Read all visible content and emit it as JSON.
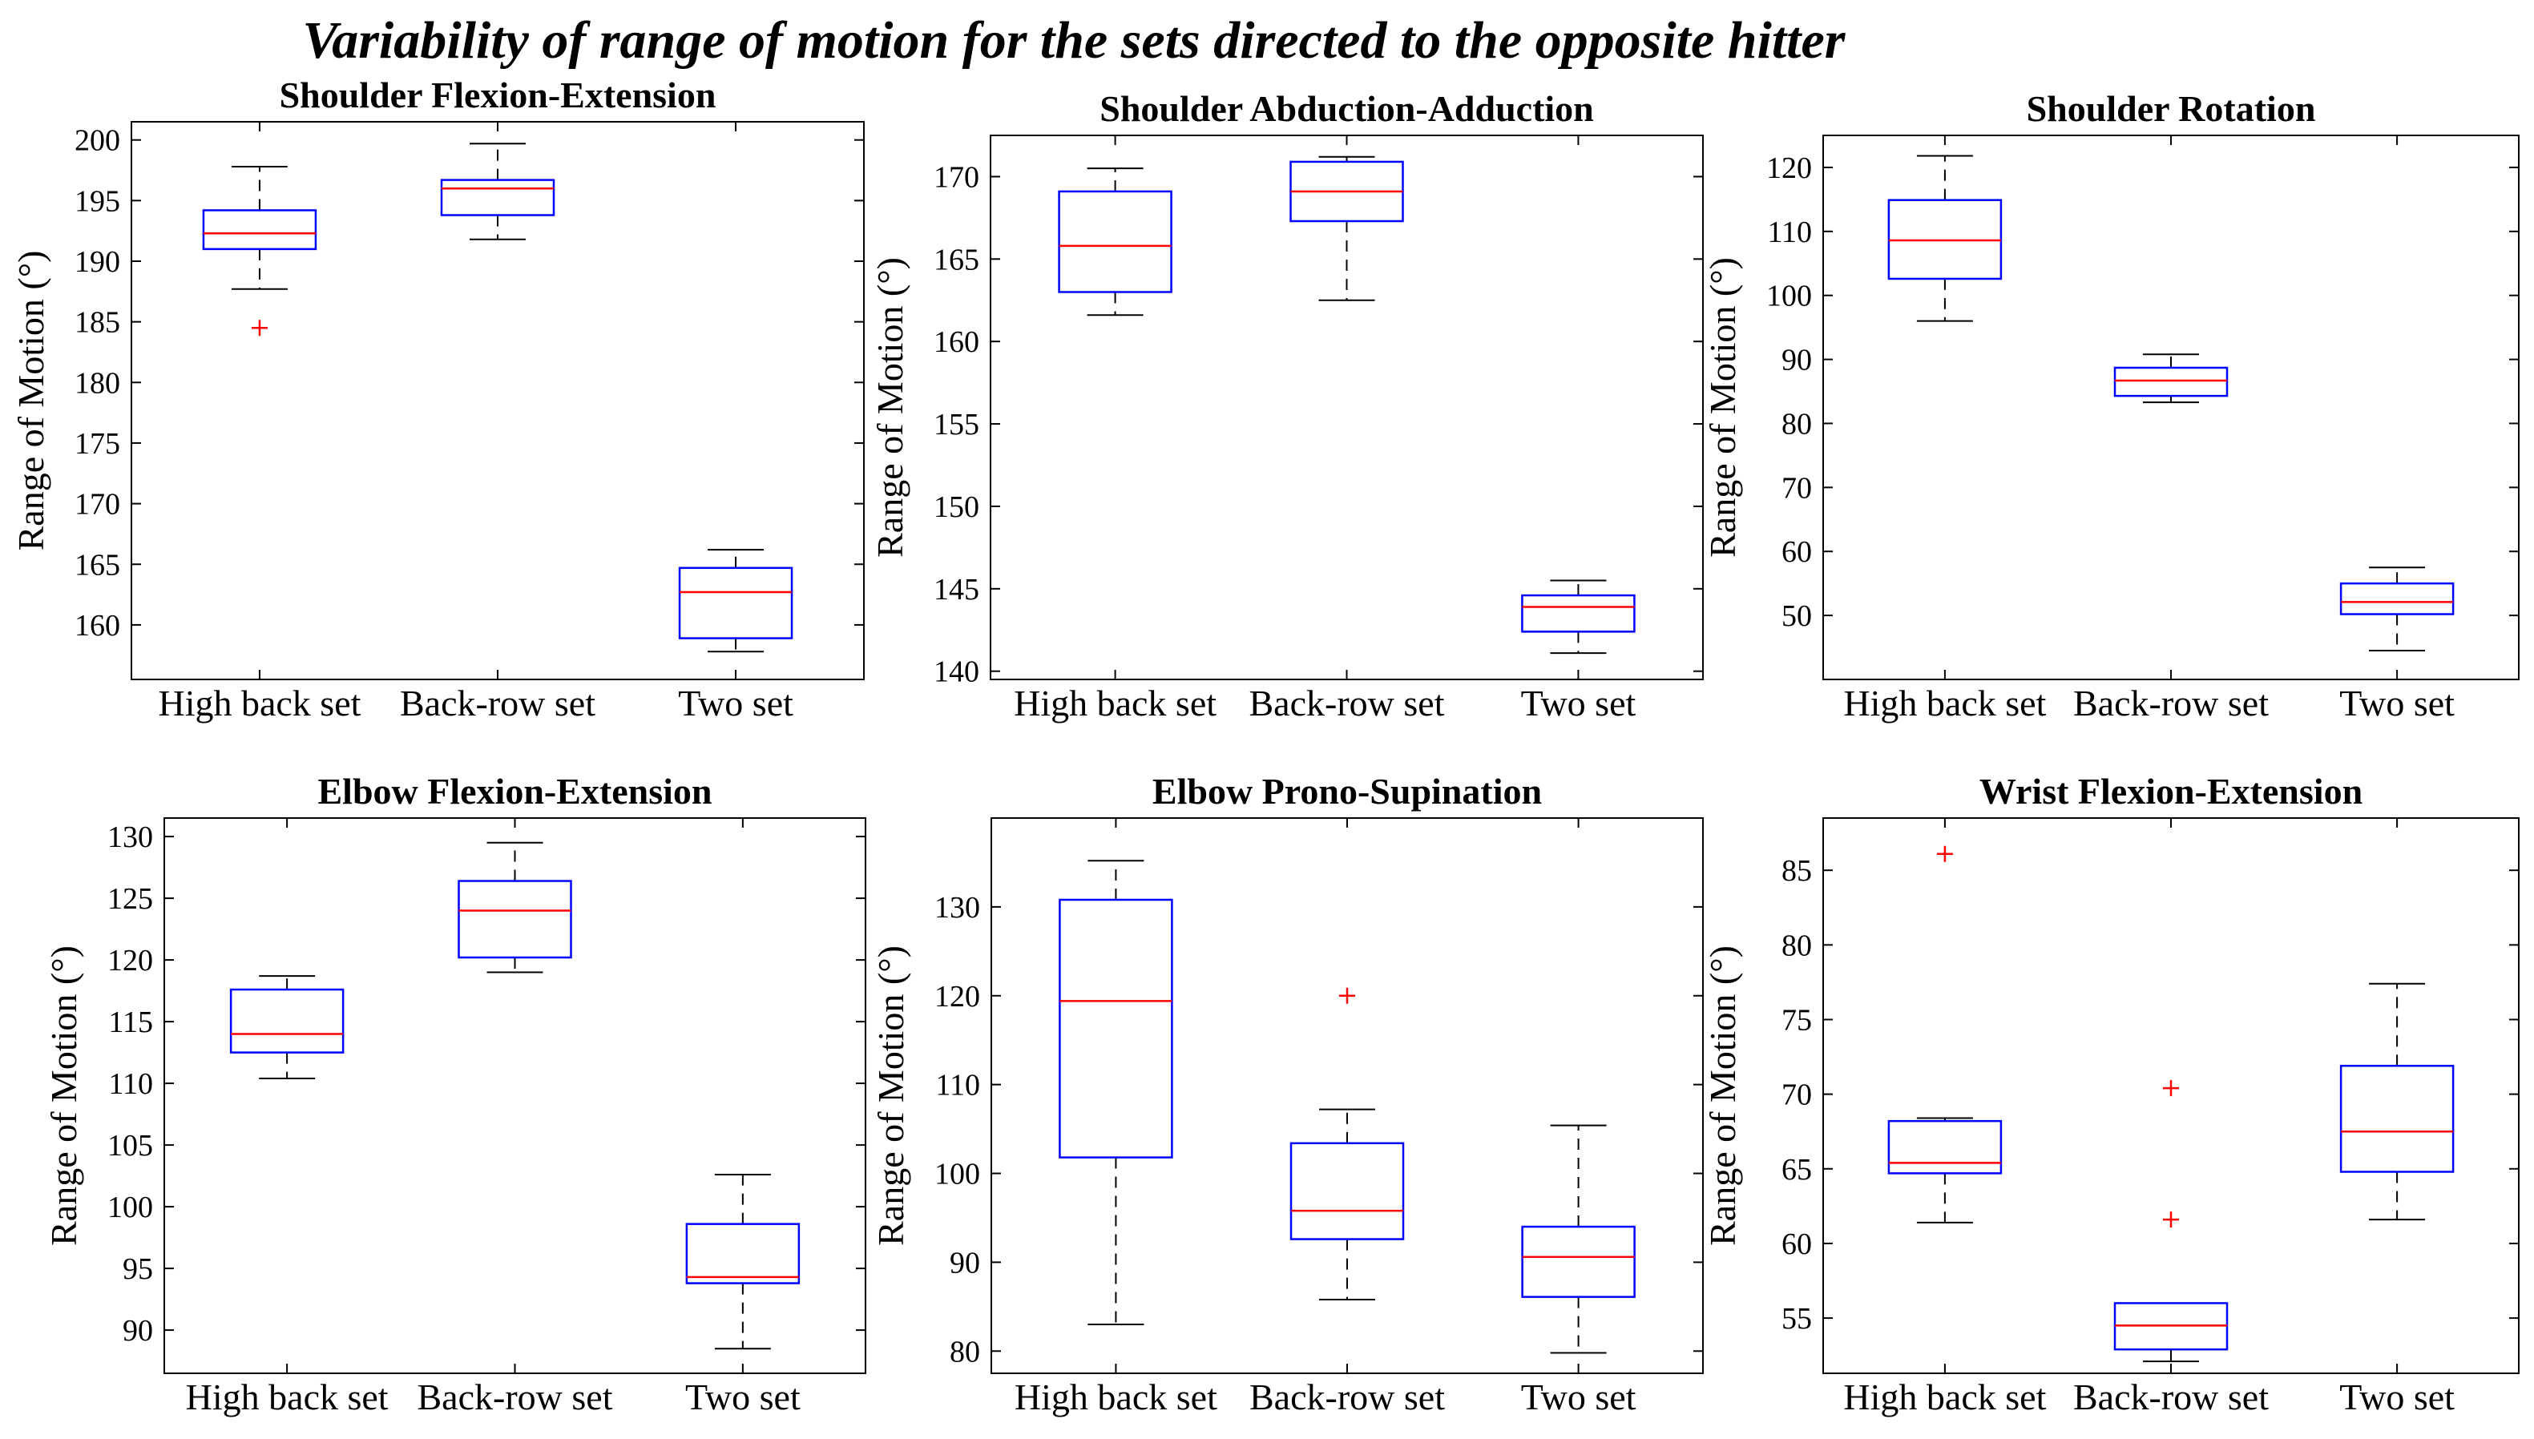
{
  "figure_title": "Variability of range of motion for the sets directed to the opposite hitter",
  "chart_data": [
    {
      "type": "box",
      "title": "Shoulder Flexion-Extension",
      "ylabel": "Range of Motion (°)",
      "xlabel": "",
      "categories": [
        "High back set",
        "Back-row set",
        "Two set"
      ],
      "ylim": [
        155.5,
        201.5
      ],
      "yticks": [
        160,
        165,
        170,
        175,
        180,
        185,
        190,
        195,
        200
      ],
      "boxes": [
        {
          "whisker_low": 187.7,
          "q1": 191.0,
          "median": 192.3,
          "q3": 194.2,
          "whisker_high": 197.8,
          "outliers": [
            184.5
          ]
        },
        {
          "whisker_low": 191.8,
          "q1": 193.8,
          "median": 196.0,
          "q3": 196.7,
          "whisker_high": 199.7,
          "outliers": []
        },
        {
          "whisker_low": 157.8,
          "q1": 158.9,
          "median": 162.7,
          "q3": 164.7,
          "whisker_high": 166.2,
          "outliers": []
        }
      ]
    },
    {
      "type": "box",
      "title": "Shoulder Abduction-Adduction",
      "ylabel": "Range of Motion (°)",
      "xlabel": "",
      "categories": [
        "High back set",
        "Back-row set",
        "Two set"
      ],
      "ylim": [
        139.5,
        172.5
      ],
      "yticks": [
        140,
        145,
        150,
        155,
        160,
        165,
        170
      ],
      "boxes": [
        {
          "whisker_low": 161.6,
          "q1": 163.0,
          "median": 165.8,
          "q3": 169.1,
          "whisker_high": 170.5,
          "outliers": []
        },
        {
          "whisker_low": 162.5,
          "q1": 167.3,
          "median": 169.1,
          "q3": 170.9,
          "whisker_high": 171.2,
          "outliers": []
        },
        {
          "whisker_low": 141.1,
          "q1": 142.4,
          "median": 143.9,
          "q3": 144.6,
          "whisker_high": 145.5,
          "outliers": []
        }
      ]
    },
    {
      "type": "box",
      "title": "Shoulder Rotation",
      "ylabel": "Range of Motion (°)",
      "xlabel": "",
      "categories": [
        "High back set",
        "Back-row set",
        "Two set"
      ],
      "ylim": [
        40,
        125
      ],
      "yticks": [
        50,
        60,
        70,
        80,
        90,
        100,
        110,
        120
      ],
      "boxes": [
        {
          "whisker_low": 96.0,
          "q1": 102.6,
          "median": 108.6,
          "q3": 114.9,
          "whisker_high": 121.8,
          "outliers": []
        },
        {
          "whisker_low": 83.3,
          "q1": 84.3,
          "median": 86.7,
          "q3": 88.7,
          "whisker_high": 90.8,
          "outliers": []
        },
        {
          "whisker_low": 44.5,
          "q1": 50.2,
          "median": 52.1,
          "q3": 55.0,
          "whisker_high": 57.5,
          "outliers": []
        }
      ]
    },
    {
      "type": "box",
      "title": "Elbow Flexion-Extension",
      "ylabel": "Range of Motion (°)",
      "xlabel": "",
      "categories": [
        "High back set",
        "Back-row set",
        "Two set"
      ],
      "ylim": [
        86.5,
        131.5
      ],
      "yticks": [
        90,
        95,
        100,
        105,
        110,
        115,
        120,
        125,
        130
      ],
      "boxes": [
        {
          "whisker_low": 110.4,
          "q1": 112.5,
          "median": 114.0,
          "q3": 117.6,
          "whisker_high": 118.7,
          "outliers": []
        },
        {
          "whisker_low": 119.0,
          "q1": 120.2,
          "median": 124.0,
          "q3": 126.4,
          "whisker_high": 129.5,
          "outliers": []
        },
        {
          "whisker_low": 88.5,
          "q1": 93.8,
          "median": 94.3,
          "q3": 98.6,
          "whisker_high": 102.6,
          "outliers": []
        }
      ]
    },
    {
      "type": "box",
      "title": "Elbow Prono-Supination",
      "ylabel": "Range of Motion (°)",
      "xlabel": "",
      "categories": [
        "High back set",
        "Back-row set",
        "Two set"
      ],
      "ylim": [
        77.5,
        140
      ],
      "yticks": [
        80,
        90,
        100,
        110,
        120,
        130
      ],
      "boxes": [
        {
          "whisker_low": 83.0,
          "q1": 101.8,
          "median": 119.4,
          "q3": 130.8,
          "whisker_high": 135.2,
          "outliers": []
        },
        {
          "whisker_low": 85.8,
          "q1": 92.6,
          "median": 95.8,
          "q3": 103.4,
          "whisker_high": 107.2,
          "outliers": [
            120.0
          ]
        },
        {
          "whisker_low": 79.8,
          "q1": 86.1,
          "median": 90.6,
          "q3": 94.0,
          "whisker_high": 105.4,
          "outliers": []
        }
      ]
    },
    {
      "type": "box",
      "title": "Wrist Flexion-Extension",
      "ylabel": "Range of Motion (°)",
      "xlabel": "",
      "categories": [
        "High back set",
        "Back-row set",
        "Two set"
      ],
      "ylim": [
        51.3,
        88.5
      ],
      "yticks": [
        55,
        60,
        65,
        70,
        75,
        80,
        85
      ],
      "boxes": [
        {
          "whisker_low": 61.4,
          "q1": 64.7,
          "median": 65.4,
          "q3": 68.2,
          "whisker_high": 68.4,
          "outliers": [
            86.1
          ]
        },
        {
          "whisker_low": 52.1,
          "q1": 52.9,
          "median": 54.5,
          "q3": 56.0,
          "whisker_high": 56.0,
          "outliers": [
            61.6,
            70.4
          ]
        },
        {
          "whisker_low": 61.6,
          "q1": 64.8,
          "median": 67.5,
          "q3": 71.9,
          "whisker_high": 77.4,
          "outliers": []
        }
      ]
    }
  ],
  "colors": {
    "box": "#0000ff",
    "median": "#ff0000",
    "outlier": "#ff0000",
    "whisker": "#000000",
    "axis": "#000000"
  }
}
